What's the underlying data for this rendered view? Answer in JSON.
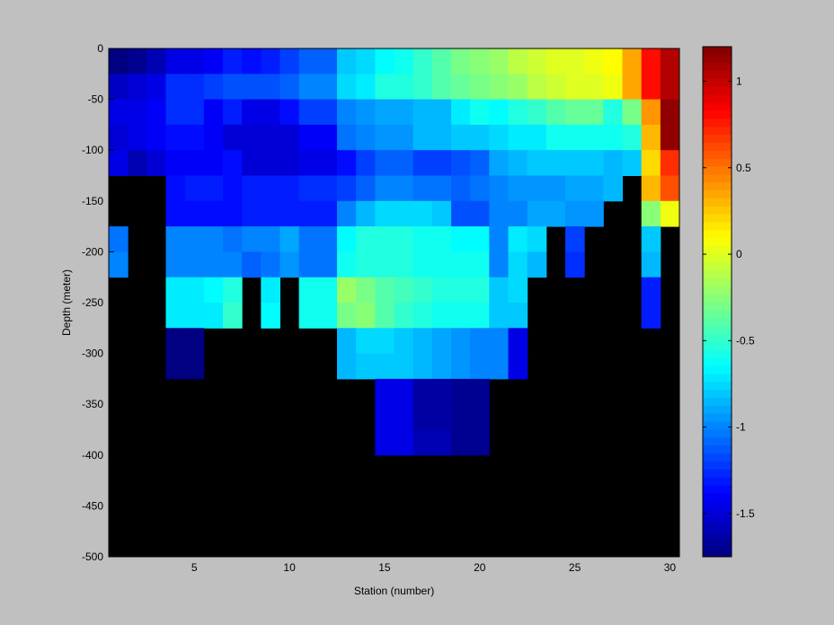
{
  "chart_data": {
    "type": "heatmap",
    "title": "",
    "xlabel": "Station (number)",
    "ylabel": "Depth (meter)",
    "xlim": [
      1,
      31
    ],
    "ylim": [
      -500,
      0
    ],
    "x_ticks": [
      5,
      10,
      15,
      20,
      25,
      30
    ],
    "y_ticks": [
      0,
      -50,
      -100,
      -150,
      -200,
      -250,
      -300,
      -350,
      -400,
      -450,
      -500
    ],
    "x": [
      1,
      2,
      3,
      4,
      5,
      6,
      7,
      8,
      9,
      10,
      11,
      12,
      13,
      14,
      15,
      16,
      17,
      18,
      19,
      20,
      21,
      22,
      23,
      24,
      25,
      26,
      27,
      28,
      29,
      30
    ],
    "y": [
      -25,
      -50,
      -75,
      -100,
      -125,
      -150,
      -175,
      -200,
      -225,
      -250,
      -275,
      -300,
      -325,
      -350,
      -375,
      -400
    ],
    "clim": [
      -1.75,
      1.2
    ],
    "colormap": "jet",
    "nodata_color": "#000000",
    "colorbar": {
      "ticks": [
        1,
        0.5,
        0,
        -0.5,
        -1,
        -1.5
      ],
      "tick_labels": [
        "1",
        "0.5",
        "0",
        "-0.5",
        "-1",
        "-1.5"
      ]
    },
    "z": [
      [
        -1.75,
        -1.7,
        -1.6,
        -1.45,
        -1.45,
        -1.4,
        -1.3,
        -1.35,
        -1.3,
        -1.2,
        -1.1,
        -1.1,
        -0.8,
        -0.75,
        -0.65,
        -0.6,
        -0.5,
        -0.4,
        -0.3,
        -0.25,
        -0.2,
        -0.1,
        -0.05,
        0,
        0,
        0.05,
        0.1,
        0.35,
        0.8,
        1.05
      ],
      [
        -1.55,
        -1.5,
        -1.45,
        -1.25,
        -1.25,
        -1.2,
        -1.15,
        -1.15,
        -1.15,
        -1.1,
        -1.0,
        -1.0,
        -0.75,
        -0.7,
        -0.55,
        -0.55,
        -0.5,
        -0.4,
        -0.35,
        -0.3,
        -0.25,
        -0.2,
        -0.1,
        -0.05,
        0,
        0,
        0.05,
        0.35,
        0.8,
        1.05
      ],
      [
        -1.45,
        -1.45,
        -1.4,
        -1.25,
        -1.25,
        -1.4,
        -1.3,
        -1.45,
        -1.45,
        -1.35,
        -1.2,
        -1.2,
        -1.0,
        -0.95,
        -0.9,
        -0.9,
        -0.85,
        -0.85,
        -0.7,
        -0.6,
        -0.65,
        -0.55,
        -0.5,
        -0.4,
        -0.35,
        -0.35,
        -0.55,
        -0.3,
        0.4,
        1.15
      ],
      [
        -1.5,
        -1.45,
        -1.4,
        -1.35,
        -1.35,
        -1.4,
        -1.5,
        -1.5,
        -1.5,
        -1.5,
        -1.4,
        -1.4,
        -1.05,
        -1.0,
        -0.95,
        -0.95,
        -0.85,
        -0.85,
        -0.8,
        -0.8,
        -0.75,
        -0.7,
        -0.7,
        -0.6,
        -0.6,
        -0.6,
        -0.6,
        -0.55,
        0.3,
        1.15
      ],
      [
        -1.45,
        -1.6,
        -1.5,
        -1.4,
        -1.4,
        -1.4,
        -1.35,
        -1.5,
        -1.5,
        -1.5,
        -1.45,
        -1.45,
        -1.35,
        -1.2,
        -1.1,
        -1.1,
        -1.2,
        -1.2,
        -1.15,
        -1.1,
        -0.9,
        -0.85,
        -0.8,
        -0.8,
        -0.8,
        -0.8,
        -0.85,
        -0.8,
        0.2,
        0.7
      ],
      [
        null,
        null,
        null,
        -1.35,
        -1.3,
        -1.3,
        -1.35,
        -1.3,
        -1.3,
        -1.3,
        -1.25,
        -1.25,
        -1.2,
        -1.1,
        -1.0,
        -1.0,
        -1.05,
        -1.05,
        -1.1,
        -1.05,
        -1.0,
        -0.95,
        -0.95,
        -0.95,
        -0.9,
        -0.9,
        -0.85,
        null,
        0.3,
        0.6
      ],
      [
        null,
        null,
        null,
        -1.35,
        -1.35,
        -1.35,
        -1.35,
        -1.3,
        -1.3,
        -1.3,
        -1.3,
        -1.3,
        -1.0,
        -0.85,
        -0.75,
        -0.75,
        -0.75,
        -0.8,
        -1.15,
        -1.15,
        -1.0,
        -1.0,
        -0.9,
        -0.9,
        -0.95,
        -0.95,
        null,
        null,
        -0.25,
        0.05
      ],
      [
        -1.05,
        null,
        null,
        -1.0,
        -1.0,
        -1.0,
        -1.05,
        -1.0,
        -1.0,
        -0.9,
        -1.05,
        -1.05,
        -0.65,
        -0.55,
        -0.55,
        -0.55,
        -0.6,
        -0.6,
        -0.65,
        -0.65,
        -1.0,
        -0.7,
        -0.75,
        null,
        -1.2,
        null,
        null,
        null,
        -0.8,
        null
      ],
      [
        -1.0,
        null,
        null,
        -1.0,
        -1.0,
        -1.0,
        -1.0,
        -1.1,
        -1.05,
        -0.95,
        -1.05,
        -1.05,
        -0.6,
        -0.55,
        -0.55,
        -0.55,
        -0.6,
        -0.6,
        -0.6,
        -0.6,
        -1.0,
        -0.75,
        -0.85,
        null,
        -1.25,
        null,
        null,
        null,
        -0.85,
        null
      ],
      [
        null,
        null,
        null,
        -0.7,
        -0.7,
        -0.65,
        -0.55,
        null,
        -0.7,
        null,
        -0.6,
        -0.6,
        -0.2,
        -0.3,
        -0.4,
        -0.45,
        -0.5,
        -0.55,
        -0.55,
        -0.55,
        -0.8,
        -0.75,
        null,
        null,
        null,
        null,
        null,
        null,
        -1.3,
        null
      ],
      [
        null,
        null,
        null,
        -0.7,
        -0.7,
        -0.7,
        -0.5,
        null,
        -0.65,
        null,
        -0.6,
        -0.6,
        -0.3,
        -0.25,
        -0.4,
        -0.5,
        -0.55,
        -0.6,
        -0.6,
        -0.6,
        -0.8,
        -0.8,
        null,
        null,
        null,
        null,
        null,
        null,
        -1.3,
        null
      ],
      [
        null,
        null,
        null,
        -1.75,
        -1.75,
        null,
        null,
        null,
        null,
        null,
        null,
        null,
        -0.85,
        -0.75,
        -0.75,
        -0.8,
        -0.85,
        -0.9,
        -0.95,
        -1.0,
        -1.0,
        -1.45,
        null,
        null,
        null,
        null,
        null,
        null,
        null,
        null
      ],
      [
        null,
        null,
        null,
        -1.75,
        -1.75,
        null,
        null,
        null,
        null,
        null,
        null,
        null,
        -0.85,
        -0.8,
        -0.8,
        -0.8,
        -0.85,
        -0.9,
        -0.95,
        -1.0,
        -1.0,
        -1.45,
        null,
        null,
        null,
        null,
        null,
        null,
        null,
        null
      ],
      [
        null,
        null,
        null,
        null,
        null,
        null,
        null,
        null,
        null,
        null,
        null,
        null,
        null,
        null,
        -1.45,
        -1.45,
        -1.65,
        -1.65,
        -1.7,
        -1.7,
        null,
        null,
        null,
        null,
        null,
        null,
        null,
        null,
        null,
        null
      ],
      [
        null,
        null,
        null,
        null,
        null,
        null,
        null,
        null,
        null,
        null,
        null,
        null,
        null,
        null,
        -1.45,
        -1.45,
        -1.65,
        -1.65,
        -1.7,
        -1.7,
        null,
        null,
        null,
        null,
        null,
        null,
        null,
        null,
        null,
        null
      ],
      [
        null,
        null,
        null,
        null,
        null,
        null,
        null,
        null,
        null,
        null,
        null,
        null,
        null,
        null,
        -1.45,
        -1.45,
        -1.6,
        -1.6,
        -1.7,
        -1.7,
        null,
        null,
        null,
        null,
        null,
        null,
        null,
        null,
        null,
        null
      ]
    ]
  }
}
